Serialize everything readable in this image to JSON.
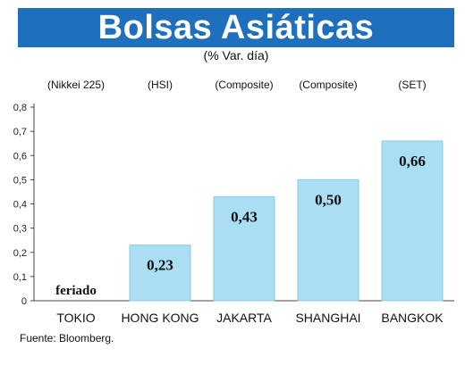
{
  "title": "Bolsas Asiáticas",
  "subtitle": "(% Var. día)",
  "source": "Fuente: Bloomberg.",
  "colors": {
    "title_bar": "#1f6fbf",
    "bar": "#a9def3",
    "bar_stroke": "#8ccbe6",
    "axis": "#444444"
  },
  "chart_data": {
    "type": "bar",
    "categories": [
      "TOKIO",
      "HONG KONG",
      "JAKARTA",
      "SHANGHAI",
      "BANGKOK"
    ],
    "index_labels": [
      "(Nikkei 225)",
      "(HSI)",
      "(Composite)",
      "(Composite)",
      "(SET)"
    ],
    "values": [
      null,
      0.23,
      0.43,
      0.5,
      0.66
    ],
    "data_labels": [
      "feriado",
      "0,23",
      "0,43",
      "0,50",
      "0,66"
    ],
    "y_ticks": [
      "0",
      "0,1",
      "0,2",
      "0,3",
      "0,4",
      "0,5",
      "0,6",
      "0,7",
      "0,8"
    ],
    "ylim": [
      0,
      0.8
    ],
    "grid": false
  }
}
